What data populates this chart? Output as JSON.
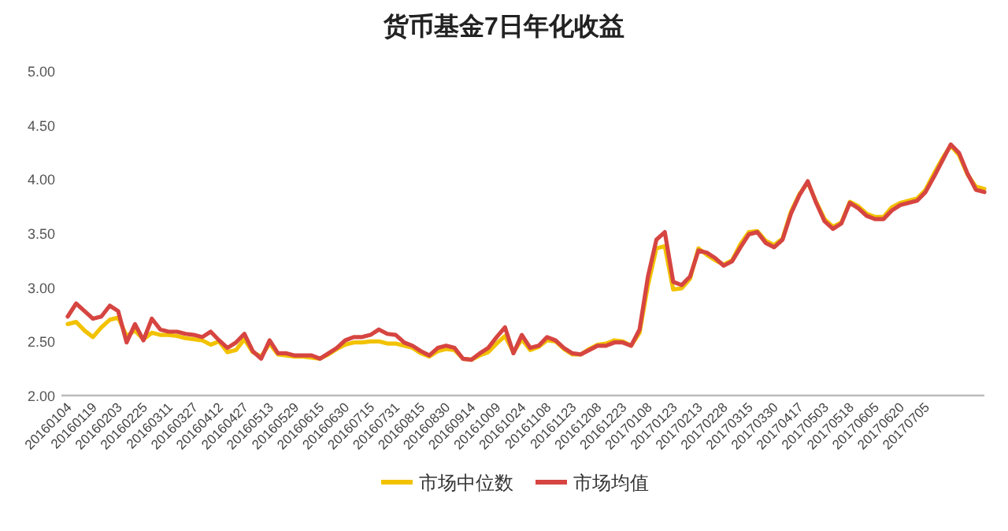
{
  "chart_data": {
    "type": "line",
    "title": "货币基金7日年化收益",
    "categories": [
      "20160104",
      null,
      null,
      "20160119",
      null,
      null,
      "20160203",
      null,
      null,
      "20160225",
      null,
      null,
      "20160311",
      null,
      null,
      "20160327",
      null,
      null,
      "20160412",
      null,
      null,
      "20160427",
      null,
      null,
      "20160513",
      null,
      null,
      "20160529",
      null,
      null,
      "20160615",
      null,
      null,
      "20160630",
      null,
      null,
      "20160715",
      null,
      null,
      "20160731",
      null,
      null,
      "20160815",
      null,
      null,
      "20160830",
      null,
      null,
      "20160914",
      null,
      null,
      "20161009",
      null,
      null,
      "20161024",
      null,
      null,
      "20161108",
      null,
      null,
      "20161123",
      null,
      null,
      "20161208",
      null,
      null,
      "20161223",
      null,
      null,
      "20170108",
      null,
      null,
      "20170123",
      null,
      null,
      "20170213",
      null,
      null,
      "20170228",
      null,
      null,
      "20170315",
      null,
      null,
      "20170330",
      null,
      null,
      "20170417",
      null,
      null,
      "20170503",
      null,
      null,
      "20170518",
      null,
      null,
      "20170605",
      null,
      null,
      "20170620",
      null,
      null,
      "20170705",
      null,
      null,
      null,
      null,
      null,
      null,
      null
    ],
    "series": [
      {
        "name": "市场中位数",
        "color": "#f2c200",
        "values": [
          2.66,
          2.68,
          2.6,
          2.54,
          2.63,
          2.7,
          2.72,
          2.55,
          2.6,
          2.52,
          2.58,
          2.56,
          2.56,
          2.55,
          2.53,
          2.52,
          2.51,
          2.47,
          2.5,
          2.4,
          2.42,
          2.52,
          2.4,
          2.36,
          2.48,
          2.38,
          2.37,
          2.36,
          2.36,
          2.35,
          2.34,
          2.38,
          2.43,
          2.47,
          2.49,
          2.49,
          2.5,
          2.5,
          2.48,
          2.48,
          2.46,
          2.44,
          2.39,
          2.36,
          2.41,
          2.43,
          2.42,
          2.34,
          2.33,
          2.37,
          2.4,
          2.48,
          2.55,
          2.4,
          2.52,
          2.42,
          2.45,
          2.51,
          2.5,
          2.43,
          2.38,
          2.38,
          2.43,
          2.47,
          2.48,
          2.51,
          2.5,
          2.46,
          2.58,
          3.02,
          3.36,
          3.38,
          2.98,
          2.99,
          3.08,
          3.36,
          3.3,
          3.25,
          3.21,
          3.25,
          3.4,
          3.51,
          3.52,
          3.43,
          3.39,
          3.45,
          3.7,
          3.86,
          3.97,
          3.79,
          3.63,
          3.56,
          3.6,
          3.79,
          3.75,
          3.68,
          3.65,
          3.65,
          3.74,
          3.78,
          3.8,
          3.82,
          3.9,
          4.05,
          4.19,
          4.31,
          4.22,
          4.04,
          3.93,
          3.91
        ]
      },
      {
        "name": "市场均值",
        "color": "#d64541",
        "values": [
          2.73,
          2.85,
          2.78,
          2.71,
          2.73,
          2.83,
          2.78,
          2.49,
          2.66,
          2.51,
          2.71,
          2.61,
          2.59,
          2.59,
          2.57,
          2.56,
          2.54,
          2.59,
          2.51,
          2.44,
          2.49,
          2.57,
          2.41,
          2.34,
          2.51,
          2.39,
          2.39,
          2.37,
          2.37,
          2.37,
          2.34,
          2.39,
          2.44,
          2.51,
          2.54,
          2.54,
          2.56,
          2.61,
          2.57,
          2.56,
          2.49,
          2.46,
          2.41,
          2.37,
          2.44,
          2.46,
          2.44,
          2.34,
          2.33,
          2.39,
          2.44,
          2.54,
          2.63,
          2.39,
          2.56,
          2.44,
          2.46,
          2.54,
          2.51,
          2.44,
          2.39,
          2.38,
          2.42,
          2.46,
          2.46,
          2.49,
          2.49,
          2.46,
          2.61,
          3.1,
          3.44,
          3.51,
          3.05,
          3.02,
          3.1,
          3.34,
          3.32,
          3.27,
          3.2,
          3.24,
          3.37,
          3.49,
          3.51,
          3.41,
          3.37,
          3.44,
          3.68,
          3.85,
          3.98,
          3.78,
          3.61,
          3.54,
          3.59,
          3.78,
          3.73,
          3.66,
          3.63,
          3.63,
          3.71,
          3.76,
          3.78,
          3.8,
          3.88,
          4.02,
          4.17,
          4.32,
          4.24,
          4.05,
          3.9,
          3.88
        ]
      }
    ],
    "ylim": [
      2,
      5
    ],
    "yticks": [
      {
        "value": 2,
        "label": "2.00"
      },
      {
        "value": 2.5,
        "label": "2.50"
      },
      {
        "value": 3,
        "label": "3.00"
      },
      {
        "value": 3.5,
        "label": "3.50"
      },
      {
        "value": 4,
        "label": "4.00"
      },
      {
        "value": 4.5,
        "label": "4.50"
      },
      {
        "value": 5,
        "label": "5.00"
      }
    ],
    "legend": "bottom"
  }
}
